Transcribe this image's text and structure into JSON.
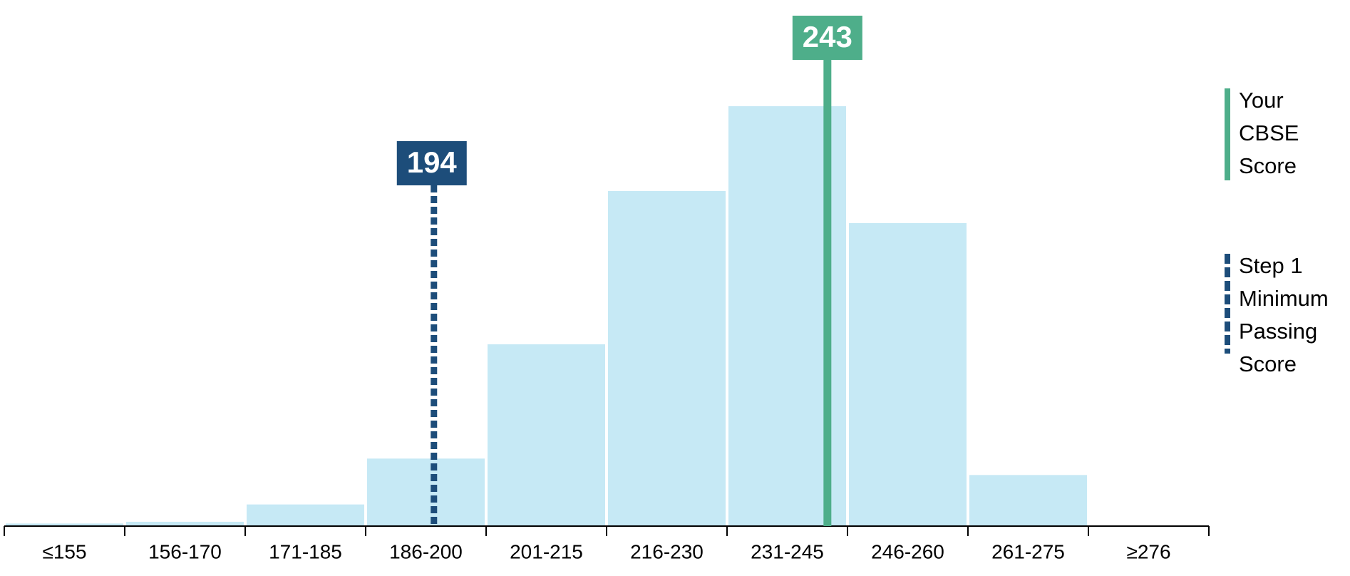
{
  "chart_data": {
    "type": "bar",
    "categories": [
      "≤155",
      "156-170",
      "171-185",
      "186-200",
      "201-215",
      "216-230",
      "231-245",
      "246-260",
      "261-275",
      "≥276"
    ],
    "values": [
      3,
      5,
      25,
      78,
      210,
      387,
      485,
      350,
      59,
      0
    ],
    "color": "#c6e9f5",
    "xlim": [
      140.5,
      290.5
    ],
    "reference_lines": [
      {
        "name": "Your CBSE Score",
        "value": 243,
        "color": "#4eae8a",
        "style": "solid"
      },
      {
        "name": "Step 1 Minimum Passing Score",
        "value": 194,
        "color": "#1d4d7a",
        "style": "dashed"
      }
    ]
  }
}
